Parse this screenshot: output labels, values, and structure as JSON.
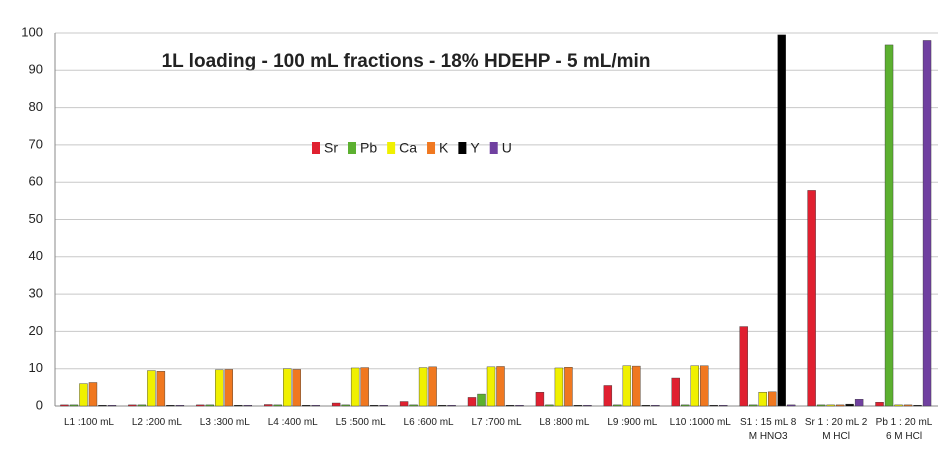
{
  "chart_data": {
    "type": "bar",
    "title": "1L loading - 100 mL fractions - 18% HDEHP - 5 mL/min",
    "categories": [
      "L1 :100 mL",
      "L2 :200 mL",
      "L3 :300 mL",
      "L4 :400 mL",
      "L5 :500 mL",
      "L6 :600 mL",
      "L7 :700 mL",
      "L8 :800 mL",
      "L9 :900 mL",
      "L10 :1000 mL",
      "S1 : 15 mL 8 M HNO3",
      "Sr 1 : 20 mL 2 M HCl",
      "Pb 1 : 20 mL 6 M HCl"
    ],
    "series": [
      {
        "name": "Sr",
        "color": "#e02030",
        "values": [
          0.3,
          0.3,
          0.3,
          0.4,
          0.8,
          1.2,
          2.3,
          3.7,
          5.5,
          7.5,
          21.3,
          57.8,
          1
        ]
      },
      {
        "name": "Pb",
        "color": "#5cb030",
        "values": [
          0.3,
          0.3,
          0.3,
          0.3,
          0.3,
          0.3,
          3.2,
          0.3,
          0.3,
          0.3,
          0.3,
          0.3,
          96.8
        ]
      },
      {
        "name": "Ca",
        "color": "#f0f000",
        "values": [
          6,
          9.5,
          9.7,
          10,
          10.2,
          10.3,
          10.5,
          10.2,
          10.8,
          10.8,
          3.7,
          0.3,
          0.3
        ]
      },
      {
        "name": "K",
        "color": "#f07820",
        "values": [
          6.3,
          9.3,
          9.8,
          9.8,
          10.3,
          10.5,
          10.6,
          10.4,
          10.7,
          10.8,
          3.8,
          0.3,
          0.3
        ]
      },
      {
        "name": "Y",
        "color": "#000000",
        "values": [
          0.2,
          0.2,
          0.2,
          0.2,
          0.2,
          0.2,
          0.2,
          0.2,
          0.2,
          0.2,
          99.5,
          0.5,
          0.2
        ]
      },
      {
        "name": "U",
        "color": "#7040a0",
        "values": [
          0.2,
          0.2,
          0.2,
          0.2,
          0.2,
          0.2,
          0.2,
          0.2,
          0.2,
          0.2,
          0.3,
          1.8,
          98
        ]
      }
    ],
    "ylim": [
      0,
      100
    ],
    "yticks": [
      0,
      10,
      20,
      30,
      40,
      50,
      60,
      70,
      80,
      90,
      100
    ],
    "grid": true
  }
}
